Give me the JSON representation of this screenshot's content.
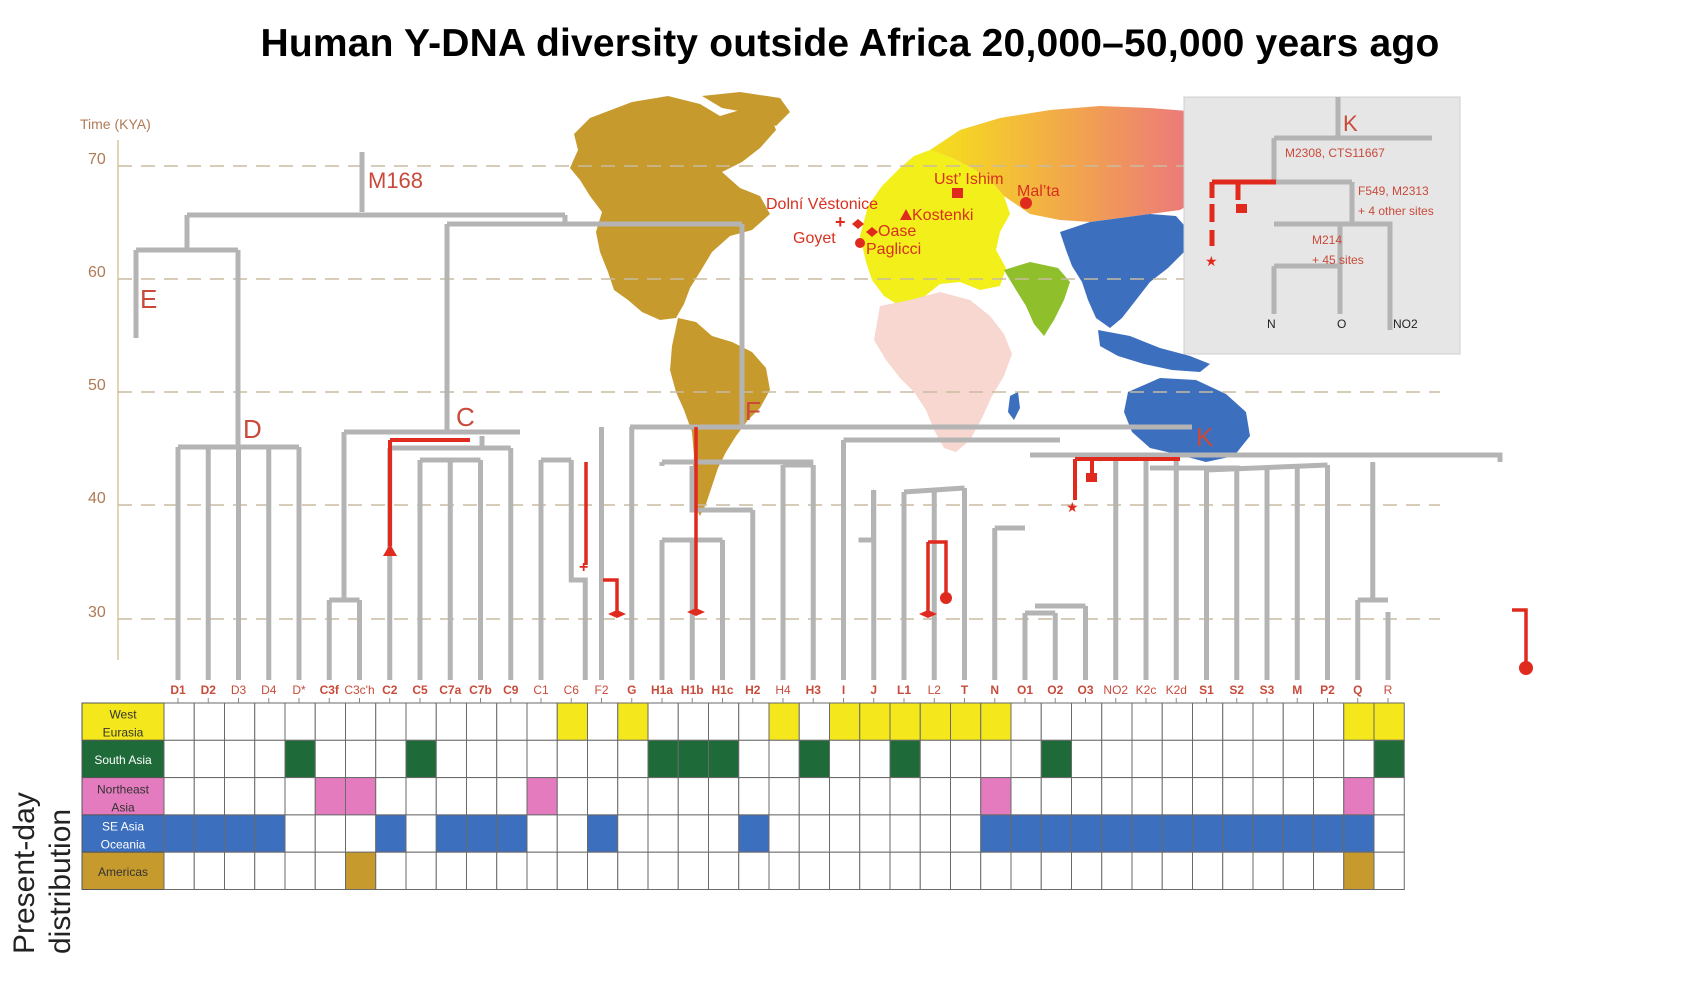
{
  "title": "Human Y-DNA diversity outside Africa 20,000–50,000 years ago",
  "axis": {
    "label": "Time (KYA)",
    "ticks": [
      "70",
      "60",
      "50",
      "40",
      "30"
    ]
  },
  "clade_labels": {
    "m168": "M168",
    "e": "E",
    "d": "D",
    "c": "C",
    "f": "F",
    "k": "K"
  },
  "sites": {
    "dolni": "Dolní Věstonice",
    "goyet": "Goyet",
    "oase": "Oase",
    "paglicci": "Paglicci",
    "kostenki": "Kostenki",
    "ustishim": "Ust’ Ishim",
    "malta": "Mal’ta"
  },
  "inset": {
    "k": "K",
    "m2308": "M2308, CTS11667",
    "f549": "F549, M2313",
    "f549_sub": "+ 4 other sites",
    "m214": "M214",
    "m214_sub": "+ 45 sites",
    "leaves": [
      "N",
      "O",
      "NO2"
    ]
  },
  "haplogroups": [
    "D1",
    "D2",
    "D3",
    "D4",
    "D*",
    "C3f",
    "C3c'h",
    "C2",
    "C5",
    "C7a",
    "C7b",
    "C9",
    "C1",
    "C6",
    "F2",
    "G",
    "H1a",
    "H1b",
    "H1c",
    "H2",
    "H4",
    "H3",
    "I",
    "J",
    "L1",
    "L2",
    "T",
    "N",
    "O1",
    "O2",
    "O3",
    "NO2",
    "K2c",
    "K2d",
    "S1",
    "S2",
    "S3",
    "M",
    "P2",
    "Q",
    "R"
  ],
  "distribution": {
    "side_label": [
      "Present-day",
      "distribution"
    ],
    "regions": [
      {
        "label": [
          "West",
          "Eurasia"
        ],
        "color": "#f4e71b"
      },
      {
        "label": [
          "South Asia"
        ],
        "color": "#1e6a38"
      },
      {
        "label": [
          "Northeast",
          "Asia"
        ],
        "color": "#e37bbe"
      },
      {
        "label": [
          "SE Asia",
          "Oceania"
        ],
        "color": "#3d6fbf"
      },
      {
        "label": [
          "Americas"
        ],
        "color": "#c79a2e"
      }
    ],
    "filled": [
      [
        "C6",
        "G",
        "H4",
        "I",
        "J",
        "L1",
        "L2",
        "T",
        "N",
        "Q",
        "R"
      ],
      [
        "D*",
        "C5",
        "H1a",
        "H1b",
        "H1c",
        "H3",
        "L1",
        "O2",
        "R"
      ],
      [
        "C3f",
        "C3c'h",
        "C1",
        "N",
        "Q"
      ],
      [
        "D1",
        "D2",
        "D3",
        "D4",
        "C2",
        "C7a",
        "C7b",
        "C9",
        "F2",
        "H2",
        "N",
        "O1",
        "O2",
        "O3",
        "NO2",
        "K2c",
        "K2d",
        "S1",
        "S2",
        "S3",
        "M",
        "P2",
        "Q"
      ],
      [
        "C3c'h",
        "Q"
      ]
    ]
  },
  "colors": {
    "branch": "#b4b4b4",
    "ancient": "#e12a1e",
    "label_red": "#c94a3a",
    "americas": "#c79a2e",
    "europe": "#f2ef1a",
    "east_asia": "#3d6fbf",
    "africa": "#f7d7cf"
  }
}
